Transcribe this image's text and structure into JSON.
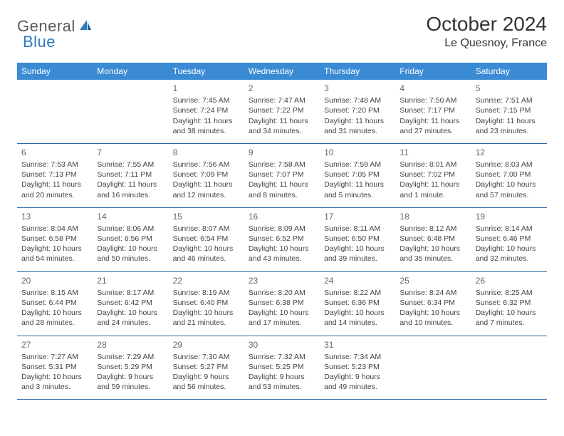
{
  "logo": {
    "general": "General",
    "blue": "Blue"
  },
  "title": "October 2024",
  "location": "Le Quesnoy, France",
  "colors": {
    "header_bg": "#3b8bd4",
    "header_text": "#ffffff",
    "row_border": "#2b6aa8",
    "logo_gray": "#5a5a5a",
    "logo_blue": "#2b7bbf"
  },
  "weekdays": [
    "Sunday",
    "Monday",
    "Tuesday",
    "Wednesday",
    "Thursday",
    "Friday",
    "Saturday"
  ],
  "weeks": [
    [
      null,
      null,
      {
        "n": "1",
        "sr": "Sunrise: 7:45 AM",
        "ss": "Sunset: 7:24 PM",
        "d1": "Daylight: 11 hours",
        "d2": "and 38 minutes."
      },
      {
        "n": "2",
        "sr": "Sunrise: 7:47 AM",
        "ss": "Sunset: 7:22 PM",
        "d1": "Daylight: 11 hours",
        "d2": "and 34 minutes."
      },
      {
        "n": "3",
        "sr": "Sunrise: 7:48 AM",
        "ss": "Sunset: 7:20 PM",
        "d1": "Daylight: 11 hours",
        "d2": "and 31 minutes."
      },
      {
        "n": "4",
        "sr": "Sunrise: 7:50 AM",
        "ss": "Sunset: 7:17 PM",
        "d1": "Daylight: 11 hours",
        "d2": "and 27 minutes."
      },
      {
        "n": "5",
        "sr": "Sunrise: 7:51 AM",
        "ss": "Sunset: 7:15 PM",
        "d1": "Daylight: 11 hours",
        "d2": "and 23 minutes."
      }
    ],
    [
      {
        "n": "6",
        "sr": "Sunrise: 7:53 AM",
        "ss": "Sunset: 7:13 PM",
        "d1": "Daylight: 11 hours",
        "d2": "and 20 minutes."
      },
      {
        "n": "7",
        "sr": "Sunrise: 7:55 AM",
        "ss": "Sunset: 7:11 PM",
        "d1": "Daylight: 11 hours",
        "d2": "and 16 minutes."
      },
      {
        "n": "8",
        "sr": "Sunrise: 7:56 AM",
        "ss": "Sunset: 7:09 PM",
        "d1": "Daylight: 11 hours",
        "d2": "and 12 minutes."
      },
      {
        "n": "9",
        "sr": "Sunrise: 7:58 AM",
        "ss": "Sunset: 7:07 PM",
        "d1": "Daylight: 11 hours",
        "d2": "and 8 minutes."
      },
      {
        "n": "10",
        "sr": "Sunrise: 7:59 AM",
        "ss": "Sunset: 7:05 PM",
        "d1": "Daylight: 11 hours",
        "d2": "and 5 minutes."
      },
      {
        "n": "11",
        "sr": "Sunrise: 8:01 AM",
        "ss": "Sunset: 7:02 PM",
        "d1": "Daylight: 11 hours",
        "d2": "and 1 minute."
      },
      {
        "n": "12",
        "sr": "Sunrise: 8:03 AM",
        "ss": "Sunset: 7:00 PM",
        "d1": "Daylight: 10 hours",
        "d2": "and 57 minutes."
      }
    ],
    [
      {
        "n": "13",
        "sr": "Sunrise: 8:04 AM",
        "ss": "Sunset: 6:58 PM",
        "d1": "Daylight: 10 hours",
        "d2": "and 54 minutes."
      },
      {
        "n": "14",
        "sr": "Sunrise: 8:06 AM",
        "ss": "Sunset: 6:56 PM",
        "d1": "Daylight: 10 hours",
        "d2": "and 50 minutes."
      },
      {
        "n": "15",
        "sr": "Sunrise: 8:07 AM",
        "ss": "Sunset: 6:54 PM",
        "d1": "Daylight: 10 hours",
        "d2": "and 46 minutes."
      },
      {
        "n": "16",
        "sr": "Sunrise: 8:09 AM",
        "ss": "Sunset: 6:52 PM",
        "d1": "Daylight: 10 hours",
        "d2": "and 43 minutes."
      },
      {
        "n": "17",
        "sr": "Sunrise: 8:11 AM",
        "ss": "Sunset: 6:50 PM",
        "d1": "Daylight: 10 hours",
        "d2": "and 39 minutes."
      },
      {
        "n": "18",
        "sr": "Sunrise: 8:12 AM",
        "ss": "Sunset: 6:48 PM",
        "d1": "Daylight: 10 hours",
        "d2": "and 35 minutes."
      },
      {
        "n": "19",
        "sr": "Sunrise: 8:14 AM",
        "ss": "Sunset: 6:46 PM",
        "d1": "Daylight: 10 hours",
        "d2": "and 32 minutes."
      }
    ],
    [
      {
        "n": "20",
        "sr": "Sunrise: 8:15 AM",
        "ss": "Sunset: 6:44 PM",
        "d1": "Daylight: 10 hours",
        "d2": "and 28 minutes."
      },
      {
        "n": "21",
        "sr": "Sunrise: 8:17 AM",
        "ss": "Sunset: 6:42 PM",
        "d1": "Daylight: 10 hours",
        "d2": "and 24 minutes."
      },
      {
        "n": "22",
        "sr": "Sunrise: 8:19 AM",
        "ss": "Sunset: 6:40 PM",
        "d1": "Daylight: 10 hours",
        "d2": "and 21 minutes."
      },
      {
        "n": "23",
        "sr": "Sunrise: 8:20 AM",
        "ss": "Sunset: 6:38 PM",
        "d1": "Daylight: 10 hours",
        "d2": "and 17 minutes."
      },
      {
        "n": "24",
        "sr": "Sunrise: 8:22 AM",
        "ss": "Sunset: 6:36 PM",
        "d1": "Daylight: 10 hours",
        "d2": "and 14 minutes."
      },
      {
        "n": "25",
        "sr": "Sunrise: 8:24 AM",
        "ss": "Sunset: 6:34 PM",
        "d1": "Daylight: 10 hours",
        "d2": "and 10 minutes."
      },
      {
        "n": "26",
        "sr": "Sunrise: 8:25 AM",
        "ss": "Sunset: 6:32 PM",
        "d1": "Daylight: 10 hours",
        "d2": "and 7 minutes."
      }
    ],
    [
      {
        "n": "27",
        "sr": "Sunrise: 7:27 AM",
        "ss": "Sunset: 5:31 PM",
        "d1": "Daylight: 10 hours",
        "d2": "and 3 minutes."
      },
      {
        "n": "28",
        "sr": "Sunrise: 7:29 AM",
        "ss": "Sunset: 5:29 PM",
        "d1": "Daylight: 9 hours",
        "d2": "and 59 minutes."
      },
      {
        "n": "29",
        "sr": "Sunrise: 7:30 AM",
        "ss": "Sunset: 5:27 PM",
        "d1": "Daylight: 9 hours",
        "d2": "and 56 minutes."
      },
      {
        "n": "30",
        "sr": "Sunrise: 7:32 AM",
        "ss": "Sunset: 5:25 PM",
        "d1": "Daylight: 9 hours",
        "d2": "and 53 minutes."
      },
      {
        "n": "31",
        "sr": "Sunrise: 7:34 AM",
        "ss": "Sunset: 5:23 PM",
        "d1": "Daylight: 9 hours",
        "d2": "and 49 minutes."
      },
      null,
      null
    ]
  ]
}
